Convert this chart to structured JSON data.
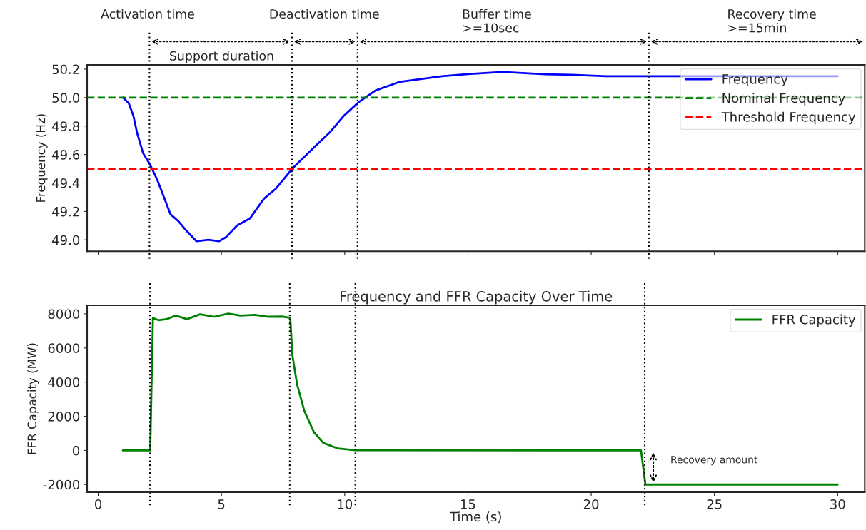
{
  "chart_data": [
    {
      "type": "line",
      "ylabel": "Frequency (Hz)",
      "xlim": [
        -0.45,
        31.1
      ],
      "ylim": [
        48.92,
        50.23
      ],
      "xticks": [
        0,
        5,
        10,
        15,
        20,
        25,
        30
      ],
      "yticks": [
        {
          "value": 49,
          "label": "49.0"
        },
        49.2,
        49.4,
        49.6,
        49.8,
        {
          "value": 50,
          "label": "50.0"
        },
        50.2
      ],
      "tick_labels": "y",
      "legend": "top right",
      "grid": false,
      "line_style": "solid",
      "marker": "none",
      "series": [
        {
          "name": "Frequency",
          "color": "#0000ff",
          "x": [
            1.0,
            1.24,
            1.43,
            1.58,
            1.82,
            2.1,
            2.4,
            2.69,
            2.93,
            3.26,
            3.55,
            3.99,
            4.47,
            4.9,
            5.19,
            5.63,
            6.15,
            6.73,
            7.21,
            7.87,
            8.75,
            9.42,
            9.95,
            10.58,
            11.25,
            12.21,
            13.95,
            15,
            16.4,
            18,
            19.2,
            20.6,
            22.3,
            25,
            30
          ],
          "values": [
            50.0,
            49.96,
            49.87,
            49.75,
            49.61,
            49.53,
            49.42,
            49.29,
            49.18,
            49.13,
            49.07,
            48.99,
            49.0,
            48.99,
            49.02,
            49.1,
            49.15,
            49.29,
            49.36,
            49.5,
            49.65,
            49.76,
            49.87,
            49.97,
            50.05,
            50.11,
            50.15,
            50.165,
            50.18,
            50.165,
            50.16,
            50.15,
            50.15,
            50.15,
            50.15
          ]
        }
      ],
      "ref_lines": [
        {
          "axis": "y",
          "value": 50.0,
          "label": "Nominal Frequency",
          "color": "#008000",
          "line_style": "dashed"
        },
        {
          "axis": "y",
          "value": 49.5,
          "label": "Threshold Frequency",
          "color": "#ff0000",
          "line_style": "dashed"
        },
        {
          "axis": "x",
          "value": 2.08,
          "color": "#000000",
          "line_style": "dotted"
        },
        {
          "axis": "x",
          "value": 7.86,
          "color": "#000000",
          "line_style": "dotted"
        },
        {
          "axis": "x",
          "value": 10.52,
          "color": "#000000",
          "line_style": "dotted"
        },
        {
          "axis": "x",
          "value": 22.34,
          "color": "#000000",
          "line_style": "dotted"
        }
      ],
      "annotations": [
        "Activation time",
        "Deactivation time",
        "Buffer time\n>=10sec",
        "Recovery time\n>=15min",
        "Support duration"
      ]
    },
    {
      "type": "line",
      "title": "Frequency and FFR Capacity Over Time",
      "xlabel": "Time (s)",
      "ylabel": "FFR Capacity (MW)",
      "xlim": [
        -0.45,
        31.1
      ],
      "ylim": [
        -2450,
        8500
      ],
      "xticks": [
        0,
        5,
        10,
        15,
        20,
        25,
        30
      ],
      "yticks": [
        -2000,
        0,
        2000,
        4000,
        6000,
        8000
      ],
      "legend": "top right",
      "grid": false,
      "line_style": "solid",
      "marker": "none",
      "series": [
        {
          "name": "FFR Capacity",
          "color": "#008000",
          "x": [
            1.0,
            2.11,
            2.22,
            2.44,
            2.78,
            3.15,
            3.6,
            4.13,
            4.71,
            5.28,
            5.77,
            6.35,
            6.92,
            7.5,
            7.79,
            7.88,
            8.07,
            8.36,
            8.75,
            9.13,
            9.71,
            10.43,
            22.02,
            22.2,
            30
          ],
          "values": [
            0,
            0,
            7760,
            7630,
            7690,
            7900,
            7690,
            7970,
            7830,
            8010,
            7900,
            7940,
            7830,
            7840,
            7760,
            5550,
            3860,
            2320,
            1070,
            440,
            120,
            10,
            0,
            -2000,
            -2000
          ]
        }
      ],
      "ref_lines": [
        {
          "axis": "x",
          "value": 2.1,
          "color": "#000000",
          "line_style": "dotted"
        },
        {
          "axis": "x",
          "value": 7.77,
          "color": "#000000",
          "line_style": "dotted"
        },
        {
          "axis": "x",
          "value": 10.43,
          "color": "#000000",
          "line_style": "dotted"
        },
        {
          "axis": "x",
          "value": 22.17,
          "color": "#000000",
          "line_style": "dotted"
        }
      ],
      "annotations": [
        "Recovery amount"
      ]
    }
  ]
}
